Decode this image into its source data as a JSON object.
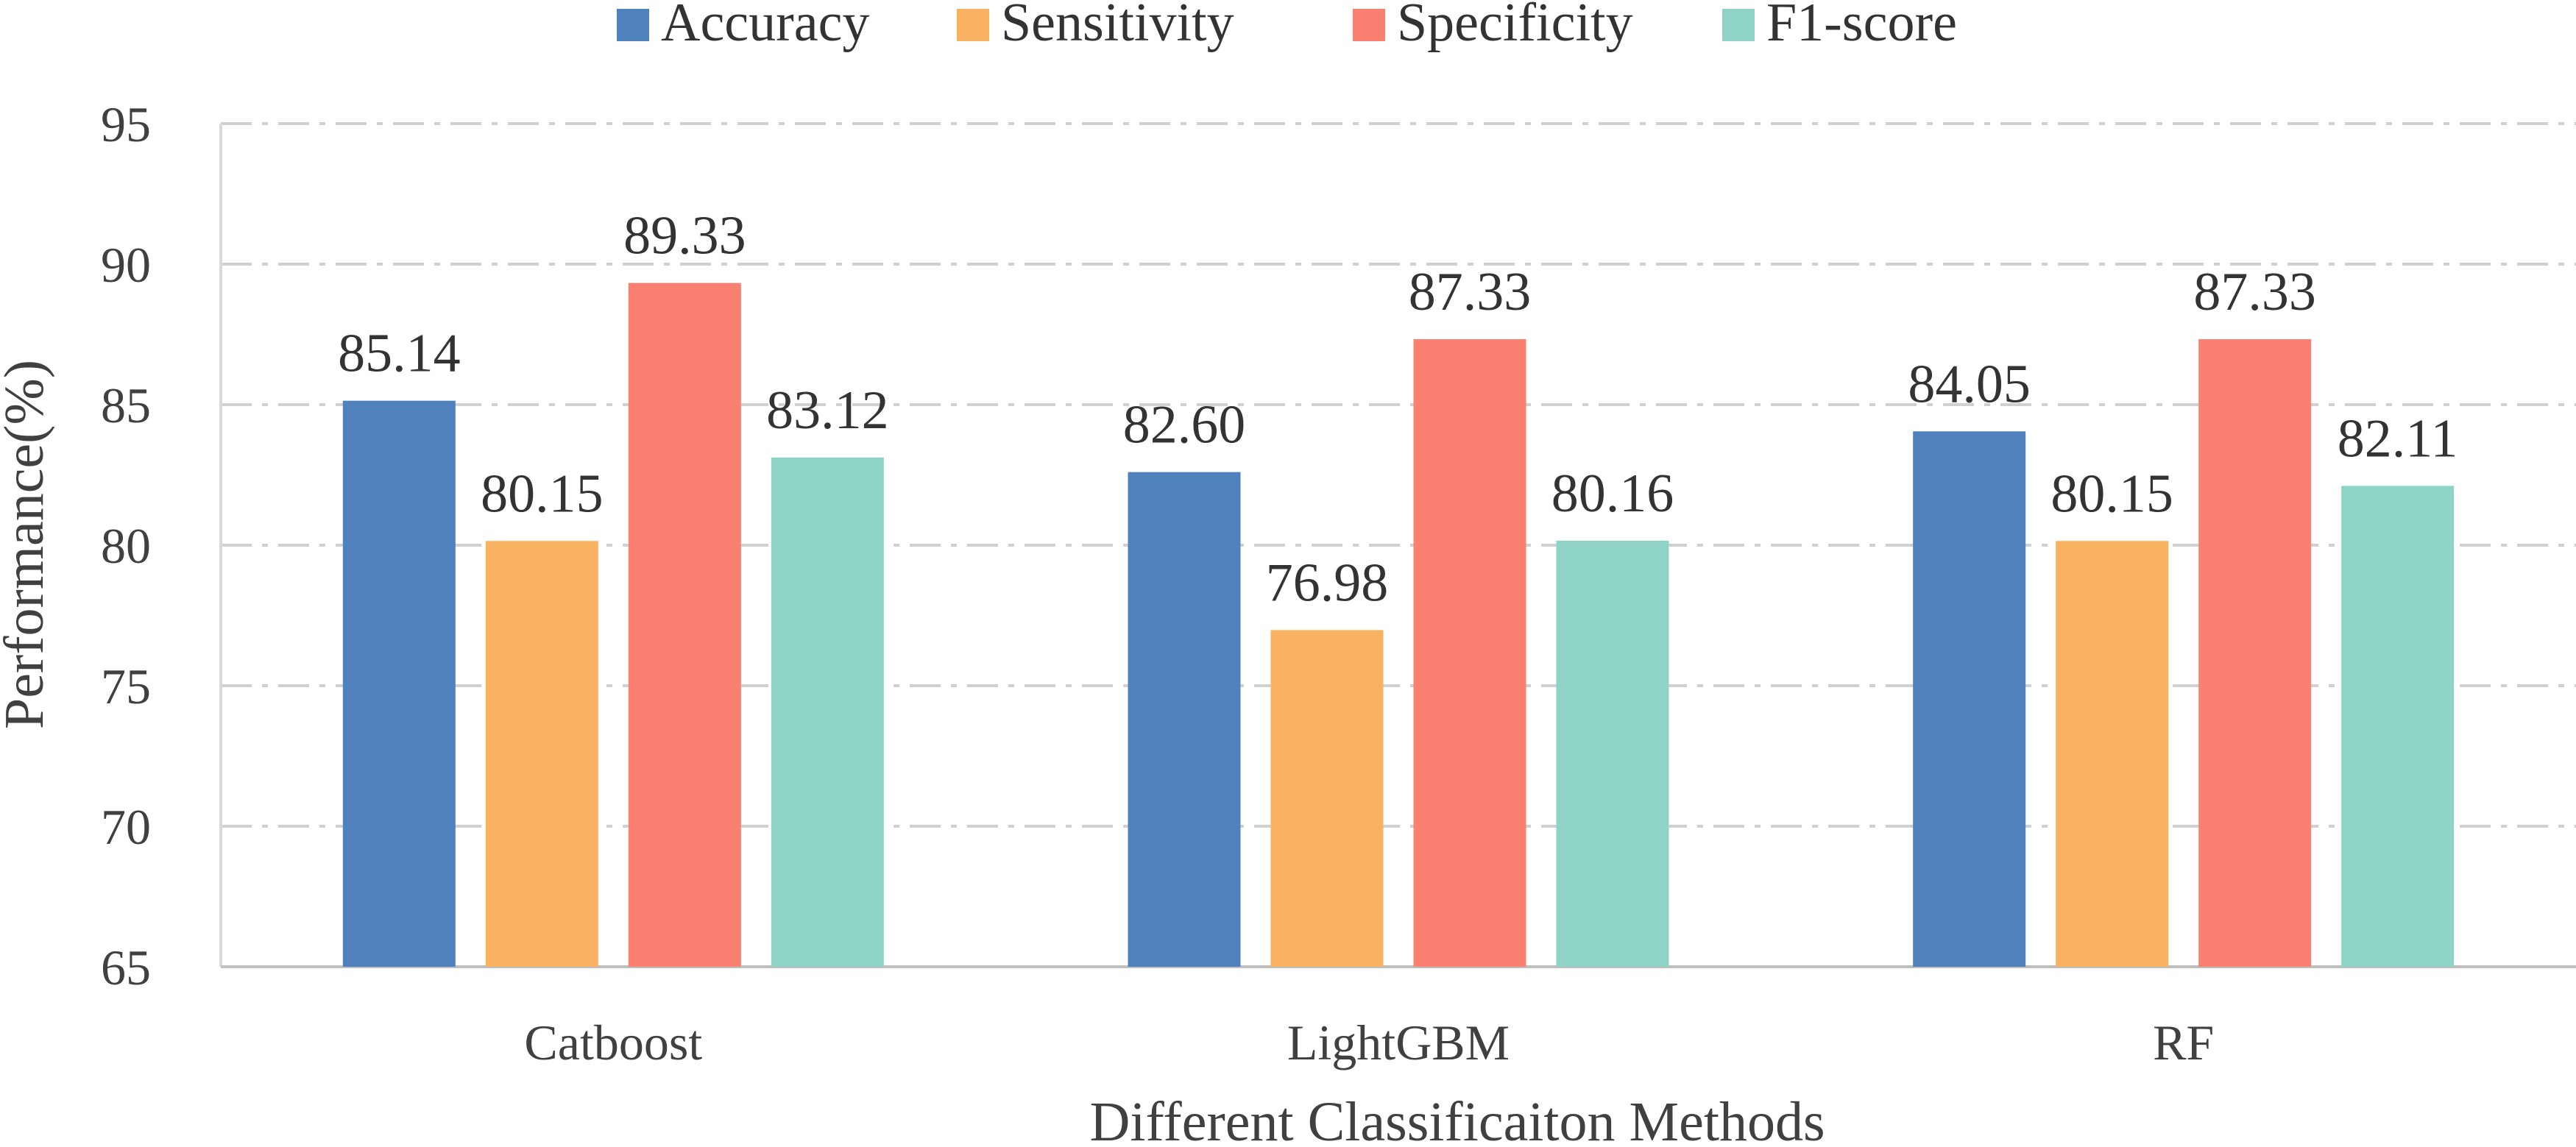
{
  "chart_data": {
    "type": "bar",
    "title": "",
    "xlabel": "Different Classificaiton Methods",
    "ylabel": "Performance(%)",
    "ylim": [
      65,
      95
    ],
    "yticks": [
      65,
      70,
      75,
      80,
      85,
      90,
      95
    ],
    "grid": true,
    "legend_position": "top",
    "categories": [
      "Catboost",
      "LightGBM",
      "RF"
    ],
    "series": [
      {
        "name": "Accuracy",
        "color": "#4f81bd",
        "values": [
          85.14,
          82.6,
          84.05
        ],
        "labels": [
          "85.14",
          "82.60",
          "84.05"
        ]
      },
      {
        "name": "Sensitivity",
        "color": "#f9b262",
        "values": [
          80.15,
          76.98,
          80.15
        ],
        "labels": [
          "80.15",
          "76.98",
          "80.15"
        ]
      },
      {
        "name": "Specificity",
        "color": "#fa8072",
        "values": [
          89.33,
          87.33,
          87.33
        ],
        "labels": [
          "89.33",
          "87.33",
          "87.33"
        ]
      },
      {
        "name": "F1-score",
        "color": "#8fd3c7",
        "values": [
          83.12,
          80.16,
          82.11
        ],
        "labels": [
          "83.12",
          "80.16",
          "82.11"
        ]
      }
    ]
  }
}
